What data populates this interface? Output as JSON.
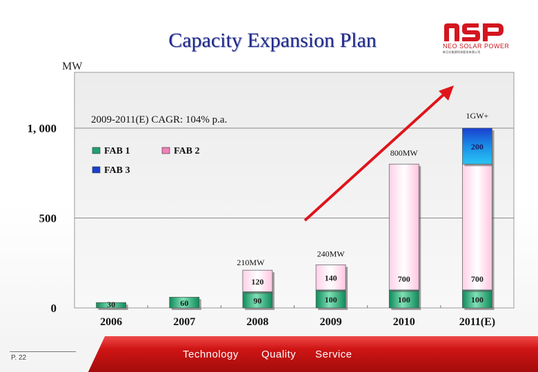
{
  "title": "Capacity Expansion Plan",
  "logo": {
    "mark": "NSP",
    "name": "NEO SOLAR POWER",
    "sub": "新日光能源科技股份有限公司"
  },
  "footer": {
    "page": "P. 22",
    "words": [
      "Technology",
      "Quality",
      "Service"
    ]
  },
  "colors": {
    "fab1": "#20a070",
    "fab2": "#f080b8",
    "fab3": "#1a3fd0",
    "arrow": "#e0141b",
    "title": "#1f2a8a"
  },
  "chart_data": {
    "type": "bar",
    "stacked": true,
    "ylabel": "MW",
    "ylim": [
      0,
      1300
    ],
    "yticks": [
      0,
      500,
      1000
    ],
    "ytick_labels": [
      "0",
      "500",
      "1, 000"
    ],
    "categories": [
      "2006",
      "2007",
      "2008",
      "2009",
      "2010",
      "2011(E)"
    ],
    "series": [
      {
        "name": "FAB 1",
        "values": [
          30,
          60,
          90,
          100,
          100,
          100
        ],
        "labels": [
          "30",
          "60",
          "90",
          "100",
          "100",
          "100"
        ]
      },
      {
        "name": "FAB 2",
        "values": [
          0,
          0,
          120,
          140,
          700,
          700
        ],
        "labels": [
          "",
          "",
          "120",
          "140",
          "700",
          "700"
        ]
      },
      {
        "name": "FAB 3",
        "values": [
          0,
          0,
          0,
          0,
          0,
          200
        ],
        "labels": [
          "",
          "",
          "",
          "",
          "",
          "200"
        ]
      }
    ],
    "totals": [
      "",
      "",
      "210MW",
      "240MW",
      "800MW",
      "1GW+"
    ],
    "annotation": "2009-2011(E) CAGR: 104% p.a.",
    "legend_position": "top-left"
  }
}
